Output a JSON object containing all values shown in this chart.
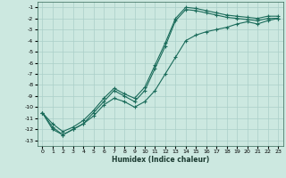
{
  "xlabel": "Humidex (Indice chaleur)",
  "bg_color": "#cce8e0",
  "grid_color": "#aacfc8",
  "line_color": "#1a6b5a",
  "xlim": [
    -0.5,
    23.5
  ],
  "ylim": [
    -13.5,
    -0.5
  ],
  "xticks": [
    0,
    1,
    2,
    3,
    4,
    5,
    6,
    7,
    8,
    9,
    10,
    11,
    12,
    13,
    14,
    15,
    16,
    17,
    18,
    19,
    20,
    21,
    22,
    23
  ],
  "yticks": [
    -1,
    -2,
    -3,
    -4,
    -5,
    -6,
    -7,
    -8,
    -9,
    -10,
    -11,
    -12,
    -13
  ],
  "series": [
    {
      "x": [
        0,
        1,
        2,
        3,
        4,
        5,
        6,
        7,
        8,
        9,
        10,
        11,
        12,
        13,
        14,
        15,
        16,
        17,
        18,
        19,
        20,
        21,
        22,
        23
      ],
      "y": [
        -10.5,
        -12.0,
        -12.5,
        -12.0,
        -11.5,
        -10.5,
        -9.5,
        -8.5,
        -9.0,
        -9.5,
        -8.5,
        -6.5,
        -4.5,
        -2.2,
        -1.2,
        -1.3,
        -1.5,
        -1.7,
        -1.9,
        -2.0,
        -2.1,
        -2.2,
        -2.0,
        -2.0
      ]
    },
    {
      "x": [
        0,
        1,
        2,
        3,
        4,
        5,
        6,
        7,
        8,
        9,
        10,
        11,
        12,
        13,
        14,
        15,
        16,
        17,
        18,
        19,
        20,
        21,
        22,
        23
      ],
      "y": [
        -10.5,
        -11.5,
        -12.2,
        -11.8,
        -11.2,
        -10.3,
        -9.2,
        -8.3,
        -8.8,
        -9.2,
        -8.2,
        -6.2,
        -4.2,
        -2.0,
        -1.0,
        -1.1,
        -1.3,
        -1.5,
        -1.7,
        -1.8,
        -1.9,
        -2.0,
        -1.8,
        -1.8
      ]
    },
    {
      "x": [
        0,
        1,
        2,
        3,
        4,
        5,
        6,
        7,
        8,
        9,
        10,
        11,
        12,
        13,
        14,
        15,
        16,
        17,
        18,
        19,
        20,
        21,
        22,
        23
      ],
      "y": [
        -10.5,
        -11.8,
        -12.5,
        -12.0,
        -11.5,
        -10.8,
        -9.8,
        -9.2,
        -9.5,
        -10.0,
        -9.5,
        -8.5,
        -7.0,
        -5.5,
        -4.0,
        -3.5,
        -3.2,
        -3.0,
        -2.8,
        -2.5,
        -2.3,
        -2.5,
        -2.2,
        -2.0
      ]
    }
  ]
}
